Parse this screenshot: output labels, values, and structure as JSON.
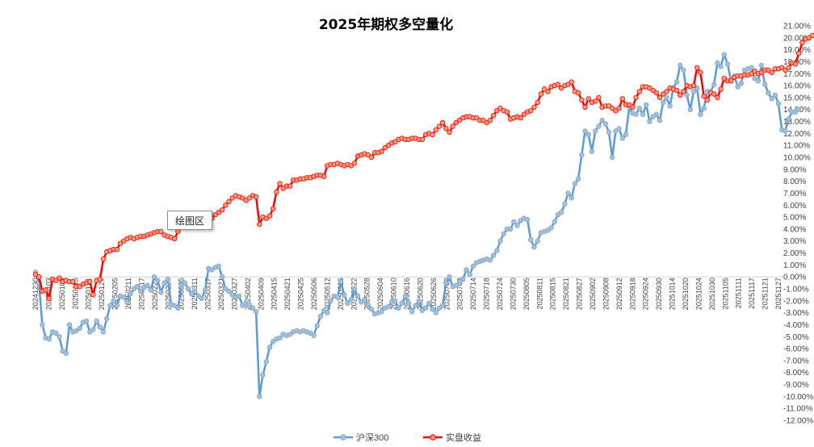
{
  "chart_data": {
    "type": "line",
    "title": "2025年期权多空量化",
    "xlabel": "",
    "ylabel": "",
    "ylim": [
      -12,
      21
    ],
    "y_ticks": [
      "-12.00%",
      "-11.00%",
      "-10.00%",
      "-9.00%",
      "-8.00%",
      "-7.00%",
      "-6.00%",
      "-5.00%",
      "-4.00%",
      "-3.00%",
      "-2.00%",
      "-1.00%",
      "0.00%",
      "1.00%",
      "2.00%",
      "3.00%",
      "4.00%",
      "5.00%",
      "6.00%",
      "7.00%",
      "8.00%",
      "9.00%",
      "10.00%",
      "11.00%",
      "12.00%",
      "13.00%",
      "14.00%",
      "15.00%",
      "16.00%",
      "17.00%",
      "18.00%",
      "19.00%",
      "20.00%",
      "21.00%"
    ],
    "x_tick_labels": [
      "20241230",
      "20250103",
      "20250109",
      "20250115",
      "20250121",
      "20250127",
      "20250205",
      "20250211",
      "20250217",
      "20250221",
      "20250227",
      "20250305",
      "20250311",
      "20250317",
      "20250321",
      "20250327",
      "20250402",
      "20250409",
      "20250415",
      "20250421",
      "20250425",
      "20250506",
      "20250512",
      "20250516",
      "20250522",
      "20250528",
      "20250604",
      "20250610",
      "20250616",
      "20250620",
      "20250626",
      "20250702",
      "20250708",
      "20250714",
      "20250718",
      "20250724",
      "20250730",
      "20250805",
      "20250811",
      "20250815",
      "20250821",
      "20250827",
      "20250902",
      "20250908",
      "20250912",
      "20250918",
      "20250924",
      "20250930",
      "20251014",
      "20251020",
      "20251024",
      "20251030",
      "20251105",
      "20251111",
      "20251117",
      "20251121",
      "20251127"
    ],
    "grid": false,
    "legend_position": "bottom",
    "tooltip": "绘图区",
    "n_points": 220,
    "series": [
      {
        "name": "沪深300",
        "color": "#5b9bd5",
        "values": [
          0.4,
          -0.5,
          -4.0,
          -5.1,
          -5.2,
          -4.6,
          -4.7,
          -5.0,
          -6.2,
          -6.4,
          -4.0,
          -4.6,
          -4.5,
          -4.3,
          -3.8,
          -3.7,
          -4.6,
          -4.4,
          -3.7,
          -4.2,
          -4.6,
          -3.5,
          -2.4,
          -2.0,
          -2.4,
          -1.6,
          -1.7,
          -2.1,
          -1.4,
          -1.0,
          -0.8,
          -1.2,
          -0.9,
          -0.7,
          -1.1,
          0.0,
          -0.3,
          -1.3,
          -0.5,
          -0.2,
          -2.3,
          -2.4,
          -2.6,
          -0.7,
          -0.5,
          -1.0,
          -1.4,
          -1.2,
          -1.6,
          -1.8,
          -1.1,
          0.7,
          0.6,
          0.8,
          0.9,
          0.0,
          -1.0,
          -1.2,
          -1.5,
          -1.7,
          -1.6,
          -2.4,
          -2.2,
          -2.3,
          -2.6,
          -2.9,
          -10.0,
          -8.2,
          -7.1,
          -5.9,
          -5.4,
          -5.2,
          -5.1,
          -4.8,
          -4.9,
          -4.8,
          -4.6,
          -4.5,
          -4.6,
          -4.5,
          -4.6,
          -4.7,
          -4.9,
          -4.1,
          -3.3,
          -2.8,
          -3.0,
          -2.0,
          -1.6,
          -1.7,
          -0.4,
          -1.5,
          -2.2,
          -1.9,
          -1.0,
          -1.6,
          -2.1,
          -1.9,
          -2.3,
          -2.7,
          -3.1,
          -3.0,
          -2.9,
          -2.6,
          -2.5,
          -2.1,
          -2.0,
          -2.6,
          -2.2,
          -1.6,
          -2.2,
          -2.9,
          -2.4,
          -2.0,
          -2.8,
          -2.6,
          -2.2,
          -2.7,
          -3.0,
          -2.6,
          -2.4,
          -0.5,
          0.0,
          -0.8,
          -0.7,
          -0.4,
          -0.2,
          0.6,
          0.2,
          0.9,
          1.2,
          1.3,
          1.4,
          1.5,
          1.4,
          1.8,
          2.2,
          3.0,
          3.6,
          4.0,
          4.0,
          4.6,
          4.3,
          4.7,
          4.9,
          4.8,
          3.1,
          2.5,
          3.0,
          3.7,
          3.8,
          3.9,
          4.1,
          4.6,
          5.2,
          5.4,
          6.1,
          7.0,
          6.6,
          7.8,
          8.2,
          10.2,
          12.2,
          11.9,
          10.5,
          12.2,
          12.6,
          13.1,
          12.8,
          12.1,
          10.0,
          12.2,
          12.4,
          11.6,
          11.9,
          14.2,
          13.7,
          13.6,
          14.1,
          13.6,
          14.4,
          13.0,
          13.4,
          13.6,
          13.1,
          14.6,
          15.0,
          14.3,
          15.8,
          16.3,
          17.7,
          17.3,
          15.2,
          14.0,
          15.5,
          15.8,
          13.6,
          14.1,
          15.5,
          15.5,
          16.1,
          17.9,
          17.6,
          18.6,
          17.8,
          16.4,
          16.8,
          15.9,
          16.2,
          17.3,
          17.4,
          17.5,
          16.6,
          16.4,
          17.7,
          16.1,
          15.4,
          14.9,
          15.2,
          14.5,
          12.3,
          12.2,
          13.2,
          13.8,
          13.8,
          14.0
        ]
      },
      {
        "name": "实盘收益",
        "color": "#ff0000",
        "values": [
          0.2,
          0.0,
          -1.2,
          -1.1,
          -1.8,
          -0.2,
          -0.3,
          -0.1,
          -0.4,
          -0.3,
          -0.4,
          -0.4,
          -0.8,
          -0.8,
          -0.6,
          -0.5,
          -0.4,
          -1.5,
          -0.3,
          -0.2,
          1.5,
          2.1,
          2.2,
          2.3,
          2.3,
          2.8,
          3.0,
          3.2,
          3.3,
          3.2,
          3.3,
          3.4,
          3.4,
          3.5,
          3.6,
          3.7,
          3.8,
          3.8,
          3.5,
          3.4,
          3.3,
          3.2,
          3.8,
          4.3,
          4.5,
          4.6,
          4.6,
          4.7,
          4.8,
          4.9,
          4.9,
          4.9,
          4.9,
          5.2,
          5.4,
          5.6,
          6.0,
          6.3,
          6.6,
          6.8,
          6.7,
          6.6,
          6.4,
          6.6,
          6.8,
          6.7,
          4.4,
          5.0,
          4.9,
          5.1,
          5.7,
          7.1,
          7.8,
          7.4,
          7.6,
          7.6,
          8.1,
          8.1,
          8.2,
          8.2,
          8.3,
          8.3,
          8.4,
          8.5,
          8.5,
          8.4,
          9.3,
          9.4,
          9.4,
          9.5,
          9.4,
          9.3,
          9.4,
          9.3,
          9.5,
          10.1,
          10.2,
          10.3,
          10.2,
          10.0,
          10.4,
          10.4,
          10.5,
          10.8,
          11.0,
          11.2,
          11.3,
          11.5,
          11.6,
          11.5,
          11.5,
          11.6,
          11.6,
          11.5,
          11.5,
          11.9,
          12.0,
          11.9,
          12.3,
          12.6,
          12.9,
          12.4,
          12.1,
          12.6,
          12.9,
          13.1,
          13.3,
          13.4,
          13.4,
          13.3,
          13.3,
          13.1,
          13.1,
          12.9,
          13.1,
          13.5,
          13.9,
          14.1,
          13.9,
          13.8,
          13.2,
          13.3,
          13.4,
          13.3,
          13.6,
          13.8,
          13.9,
          14.2,
          14.6,
          15.3,
          15.7,
          15.5,
          15.9,
          16.0,
          16.1,
          15.8,
          16.0,
          16.1,
          16.3,
          15.5,
          15.4,
          14.8,
          14.2,
          14.9,
          14.6,
          14.7,
          15.0,
          14.2,
          14.3,
          14.3,
          14.1,
          13.9,
          14.1,
          14.9,
          14.4,
          14.4,
          14.2,
          15.0,
          15.5,
          15.9,
          15.9,
          15.8,
          15.6,
          15.4,
          15.0,
          15.3,
          15.5,
          15.8,
          15.7,
          15.6,
          15.2,
          15.5,
          16.0,
          15.9,
          16.0,
          17.5,
          17.1,
          15.1,
          14.8,
          15.4,
          15.3,
          15.0,
          15.7,
          16.6,
          16.4,
          16.4,
          16.7,
          16.8,
          16.8,
          16.9,
          16.9,
          17.0,
          17.2,
          17.0,
          17.1,
          17.3,
          17.3,
          17.1,
          17.4,
          17.4,
          17.5,
          17.3,
          17.5,
          17.9,
          17.8,
          18.7,
          19.6,
          19.9,
          20.0,
          20.2
        ]
      }
    ]
  }
}
